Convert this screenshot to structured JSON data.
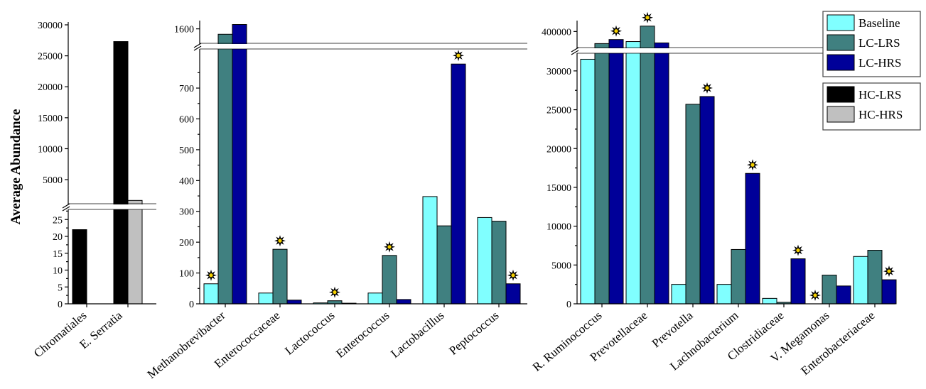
{
  "chart_data": [
    {
      "type": "bar",
      "ylabel": "Average Abundance",
      "categories": [
        "Chromatiales",
        "E. Serratia"
      ],
      "series": [
        {
          "name": "HC-LRS",
          "values": [
            22,
            27300
          ]
        },
        {
          "name": "HC-HRS",
          "values": [
            0,
            1650
          ]
        }
      ],
      "broken_axis": {
        "lower_range": [
          0,
          28
        ],
        "upper_range": [
          1000,
          30000
        ]
      },
      "ticks": [
        "0",
        "5",
        "10",
        "15",
        "20",
        "25",
        "5000",
        "10000",
        "15000",
        "20000",
        "25000",
        "30000"
      ],
      "significant": []
    },
    {
      "type": "bar",
      "categories": [
        "Methanobrevibacter",
        "Enterococcaceae",
        "Lactococcus",
        "Enterococcus",
        "Lactobacillus",
        "Peptococcus"
      ],
      "series": [
        {
          "name": "Baseline",
          "values": [
            65,
            35,
            3,
            35,
            348,
            280
          ]
        },
        {
          "name": "LC-LRS",
          "values": [
            1575,
            177,
            10,
            157,
            253,
            268
          ]
        },
        {
          "name": "LC-HRS",
          "values": [
            1620,
            12,
            2,
            14,
            778,
            65
          ]
        }
      ],
      "broken_axis": {
        "lower_range": [
          0,
          790
        ],
        "upper_range": [
          1530,
          1625
        ]
      },
      "ticks": [
        "0",
        "100",
        "200",
        "300",
        "400",
        "500",
        "600",
        "700",
        "1600"
      ],
      "significant": [
        [
          0,
          0
        ],
        [
          1,
          1
        ],
        [
          2,
          1
        ],
        [
          3,
          1
        ],
        [
          4,
          2
        ],
        [
          5,
          2
        ]
      ]
    },
    {
      "type": "bar",
      "categories": [
        "R. Ruminococcus",
        "Prevotellaceae",
        "Prevotella",
        "Lachnobacterium",
        "Clostridiaceae",
        "V. Megamonas",
        "Enterobacteriaceae"
      ],
      "series": [
        {
          "name": "Baseline",
          "values": [
            31500,
            385000,
            2500,
            2500,
            700,
            0,
            6100
          ]
        },
        {
          "name": "LC-LRS",
          "values": [
            382000,
            408000,
            25700,
            7000,
            200,
            3700,
            6900
          ]
        },
        {
          "name": "LC-HRS",
          "values": [
            388000,
            383000,
            26700,
            16800,
            5800,
            2300,
            3100
          ]
        }
      ],
      "broken_axis": {
        "lower_range": [
          0,
          32000
        ],
        "upper_range": [
          375000,
          412000
        ]
      },
      "ticks": [
        "0",
        "5000",
        "10000",
        "15000",
        "20000",
        "25000",
        "30000",
        "400000"
      ],
      "significant": [
        [
          0,
          2
        ],
        [
          1,
          1
        ],
        [
          2,
          2
        ],
        [
          3,
          2
        ],
        [
          4,
          2
        ],
        [
          5,
          0
        ],
        [
          6,
          2
        ]
      ]
    }
  ],
  "legend": {
    "groups": [
      [
        {
          "name": "Baseline",
          "color": "#80FFFF"
        },
        {
          "name": "LC-LRS",
          "color": "#408080"
        },
        {
          "name": "LC-HRS",
          "color": "#000099"
        }
      ],
      [
        {
          "name": "HC-LRS",
          "color": "#000000"
        },
        {
          "name": "HC-HRS",
          "color": "#C0C0C0"
        }
      ]
    ]
  },
  "colors": {
    "Baseline": "#80FFFF",
    "LC-LRS": "#408080",
    "LC-HRS": "#000099",
    "HC-LRS": "#000000",
    "HC-HRS": "#C0C0C0"
  },
  "annotations": {
    "significance_marker": "star-icon"
  }
}
